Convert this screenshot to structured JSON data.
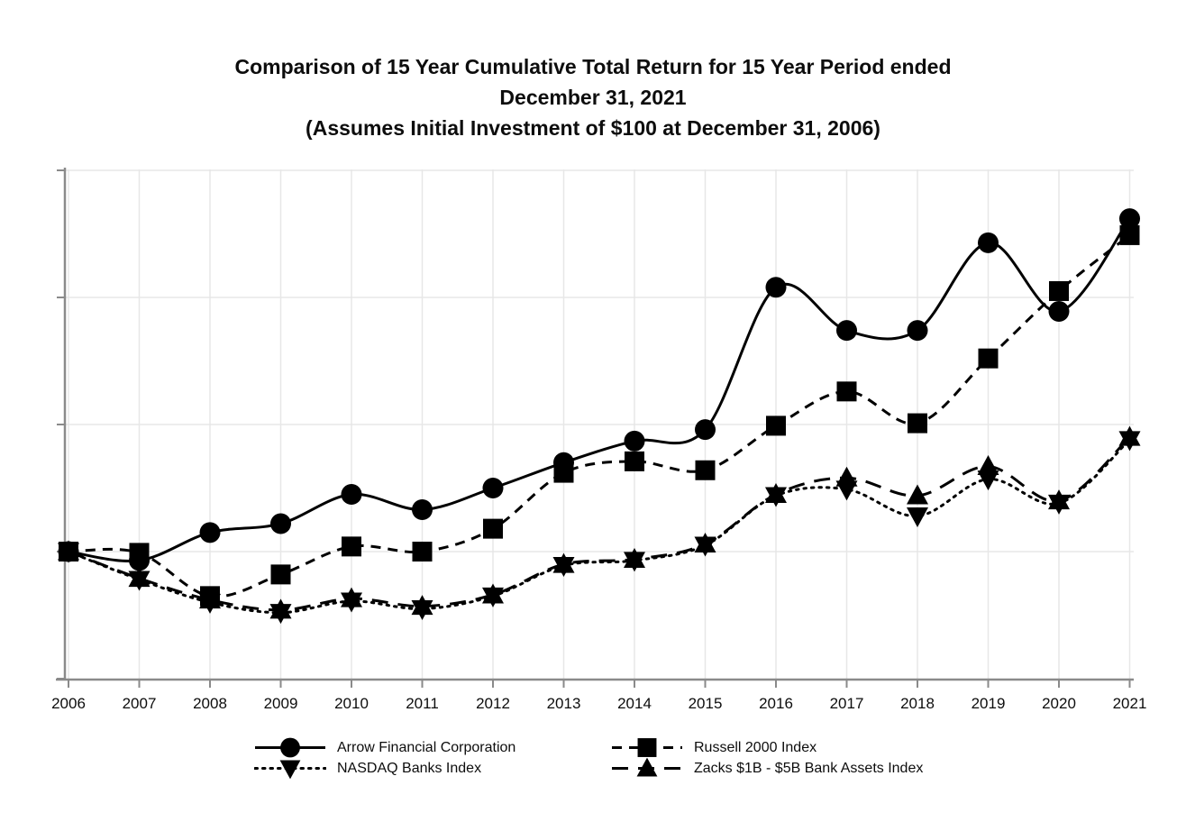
{
  "title": {
    "line1": "Comparison of 15 Year Cumulative Total Return for 15 Year Period ended",
    "line2": "December 31, 2021",
    "line3": "(Assumes Initial Investment of $100 at December 31, 2006)"
  },
  "chart_data": {
    "type": "line",
    "x": [
      2006,
      2007,
      2008,
      2009,
      2010,
      2011,
      2012,
      2013,
      2014,
      2015,
      2016,
      2017,
      2018,
      2019,
      2020,
      2021
    ],
    "series": [
      {
        "name": "Arrow Financial Corporation",
        "line_style": "solid",
        "marker": "circle",
        "values": [
          100,
          93,
          115,
          122,
          145,
          133,
          150,
          170,
          187,
          196,
          308,
          274,
          274,
          343,
          289,
          362
        ]
      },
      {
        "name": "Russell 2000 Index",
        "line_style": "dashed",
        "marker": "square",
        "values": [
          100,
          99,
          65,
          82,
          104,
          100,
          118,
          162,
          171,
          164,
          199,
          226,
          201,
          252,
          305,
          349
        ]
      },
      {
        "name": "NASDAQ Banks Index",
        "line_style": "dotted",
        "marker": "triangle-down",
        "values": [
          100,
          78,
          60,
          52,
          61,
          55,
          65,
          89,
          93,
          105,
          144,
          149,
          128,
          157,
          138,
          188
        ]
      },
      {
        "name": "Zacks $1B - $5B Bank Assets Index",
        "line_style": "long-dash",
        "marker": "triangle-up",
        "values": [
          100,
          79,
          62,
          54,
          63,
          57,
          66,
          90,
          94,
          106,
          145,
          158,
          144,
          167,
          140,
          190
        ]
      }
    ],
    "baseline_value": 100,
    "ylim": [
      0,
      400
    ],
    "y_tick_step": 100,
    "y_tick_labels_visible": false,
    "grid": true,
    "legend_position": "bottom",
    "colors": {
      "series": "#000000",
      "grid": "#e7e7e7",
      "axis": "#8a8a8a",
      "text": "#0d0d0d"
    }
  }
}
